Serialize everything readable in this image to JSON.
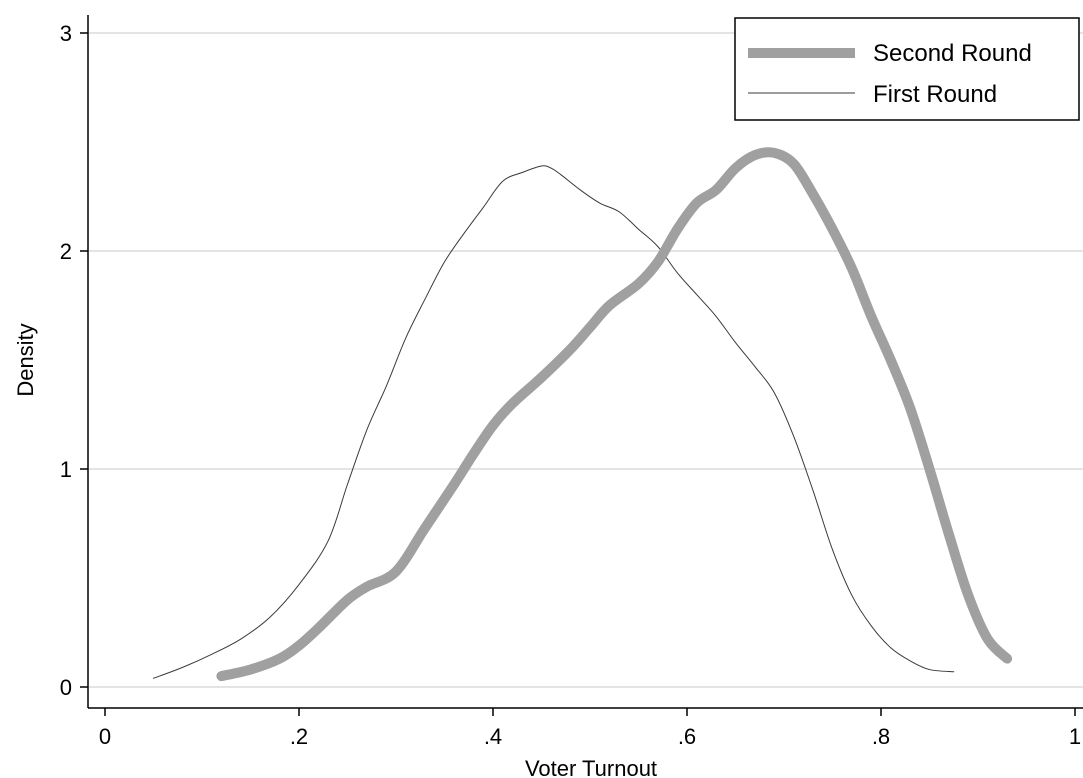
{
  "chart_data": {
    "type": "line",
    "title": "",
    "xlabel": "Voter Turnout",
    "ylabel": "Density",
    "xlim": [
      0,
      1
    ],
    "ylim": [
      0,
      3
    ],
    "x_ticks": [
      0,
      0.2,
      0.4,
      0.6,
      0.8,
      1
    ],
    "x_tick_labels": [
      "0",
      ".2",
      ".4",
      ".6",
      ".8",
      "1"
    ],
    "y_ticks": [
      0,
      1,
      2,
      3
    ],
    "y_tick_labels": [
      "0",
      "1",
      "2",
      "3"
    ],
    "grid": "horizontal",
    "legend_position": "top-right",
    "series": [
      {
        "name": "Second Round",
        "color": "#a0a0a0",
        "style": "thick",
        "x": [
          0.12,
          0.15,
          0.18,
          0.2,
          0.22,
          0.25,
          0.27,
          0.3,
          0.33,
          0.36,
          0.38,
          0.4,
          0.42,
          0.45,
          0.48,
          0.5,
          0.52,
          0.55,
          0.57,
          0.59,
          0.61,
          0.63,
          0.65,
          0.67,
          0.69,
          0.71,
          0.73,
          0.75,
          0.77,
          0.79,
          0.81,
          0.83,
          0.85,
          0.87,
          0.89,
          0.91,
          0.93
        ],
        "y": [
          0.05,
          0.08,
          0.13,
          0.19,
          0.27,
          0.4,
          0.46,
          0.53,
          0.73,
          0.93,
          1.07,
          1.2,
          1.3,
          1.42,
          1.55,
          1.65,
          1.75,
          1.85,
          1.95,
          2.1,
          2.22,
          2.28,
          2.38,
          2.44,
          2.45,
          2.4,
          2.26,
          2.1,
          1.92,
          1.7,
          1.5,
          1.28,
          1.0,
          0.7,
          0.42,
          0.22,
          0.13
        ]
      },
      {
        "name": "First Round",
        "color": "#3a3a3a",
        "style": "thin",
        "x": [
          0.05,
          0.08,
          0.11,
          0.14,
          0.17,
          0.2,
          0.23,
          0.25,
          0.27,
          0.29,
          0.31,
          0.33,
          0.35,
          0.37,
          0.39,
          0.41,
          0.43,
          0.45,
          0.46,
          0.47,
          0.49,
          0.51,
          0.53,
          0.55,
          0.57,
          0.59,
          0.61,
          0.63,
          0.65,
          0.67,
          0.69,
          0.71,
          0.73,
          0.75,
          0.77,
          0.79,
          0.81,
          0.83,
          0.85,
          0.875
        ],
        "y": [
          0.04,
          0.09,
          0.15,
          0.22,
          0.32,
          0.47,
          0.67,
          0.93,
          1.18,
          1.38,
          1.6,
          1.78,
          1.95,
          2.08,
          2.2,
          2.32,
          2.36,
          2.39,
          2.38,
          2.35,
          2.28,
          2.22,
          2.18,
          2.1,
          2.02,
          1.9,
          1.8,
          1.7,
          1.58,
          1.47,
          1.35,
          1.15,
          0.9,
          0.63,
          0.42,
          0.28,
          0.18,
          0.12,
          0.08,
          0.07
        ]
      }
    ]
  }
}
